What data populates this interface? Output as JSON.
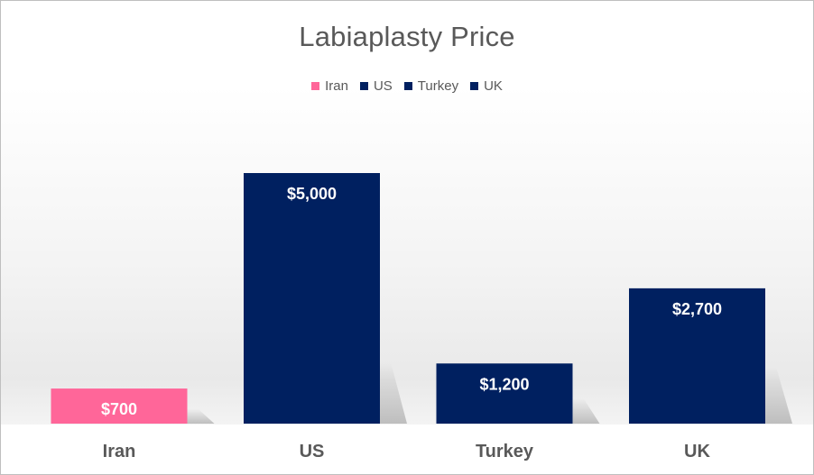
{
  "chart_data": {
    "type": "bar",
    "title": "Labiaplasty Price",
    "categories": [
      "Iran",
      "US",
      "Turkey",
      "UK"
    ],
    "values": [
      700,
      5000,
      1200,
      2700
    ],
    "value_labels": [
      "$700",
      "$5,000",
      "$1,200",
      "$2,700"
    ],
    "colors": [
      "#ff6699",
      "#002060",
      "#002060",
      "#002060"
    ],
    "legend": [
      {
        "name": "Iran",
        "color": "#ff6699"
      },
      {
        "name": "US",
        "color": "#002060"
      },
      {
        "name": "Turkey",
        "color": "#002060"
      },
      {
        "name": "UK",
        "color": "#002060"
      }
    ],
    "legend_position": "top",
    "ylim": [
      0,
      5000
    ],
    "grid": false,
    "xlabel": "",
    "ylabel": ""
  }
}
